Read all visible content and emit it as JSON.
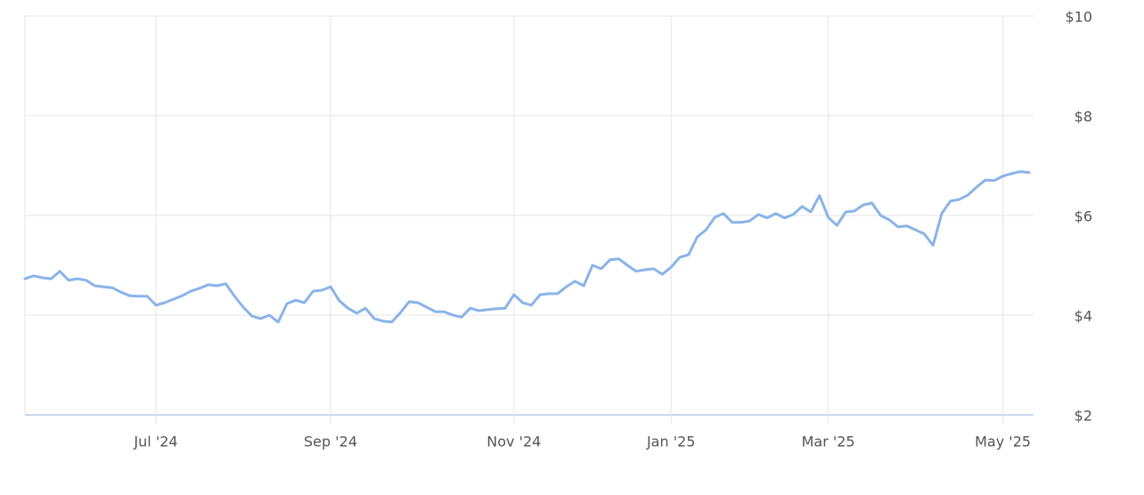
{
  "chart_data": {
    "type": "line",
    "categories": [
      null,
      null,
      null,
      null,
      null,
      null,
      null,
      null,
      null,
      null,
      null,
      null,
      null,
      null,
      null,
      "Jul '24",
      null,
      null,
      null,
      null,
      null,
      null,
      null,
      null,
      null,
      null,
      null,
      null,
      null,
      null,
      null,
      null,
      null,
      null,
      null,
      "Sep '24",
      null,
      null,
      null,
      null,
      null,
      null,
      null,
      null,
      null,
      null,
      null,
      null,
      null,
      null,
      null,
      null,
      null,
      null,
      null,
      null,
      "Nov '24",
      null,
      null,
      null,
      null,
      null,
      null,
      null,
      null,
      null,
      null,
      null,
      null,
      null,
      null,
      null,
      null,
      null,
      "Jan '25",
      null,
      null,
      null,
      null,
      null,
      null,
      null,
      null,
      null,
      null,
      null,
      null,
      null,
      null,
      null,
      null,
      null,
      "Mar '25",
      null,
      null,
      null,
      null,
      null,
      null,
      null,
      null,
      null,
      null,
      null,
      null,
      null,
      null,
      null,
      null,
      null,
      null,
      null,
      "May '25",
      null,
      null,
      null
    ],
    "values": [
      4.73,
      4.79,
      4.75,
      4.73,
      4.88,
      4.7,
      4.73,
      4.7,
      4.59,
      4.57,
      4.55,
      4.46,
      4.39,
      4.38,
      4.38,
      4.2,
      4.25,
      4.32,
      4.39,
      4.48,
      4.54,
      4.61,
      4.59,
      4.63,
      4.38,
      4.16,
      3.98,
      3.93,
      4.0,
      3.86,
      4.23,
      4.3,
      4.25,
      4.48,
      4.5,
      4.57,
      4.29,
      4.14,
      4.04,
      4.14,
      3.93,
      3.88,
      3.86,
      4.05,
      4.27,
      4.25,
      4.16,
      4.07,
      4.07,
      4.0,
      3.96,
      4.14,
      4.09,
      4.11,
      4.13,
      4.14,
      4.41,
      4.25,
      4.2,
      4.41,
      4.43,
      4.43,
      4.57,
      4.68,
      4.59,
      5.0,
      4.93,
      5.11,
      5.13,
      5.0,
      4.88,
      4.91,
      4.93,
      4.82,
      4.96,
      5.16,
      5.21,
      5.57,
      5.71,
      5.96,
      6.04,
      5.86,
      5.86,
      5.89,
      6.02,
      5.95,
      6.04,
      5.95,
      6.02,
      6.18,
      6.07,
      6.4,
      5.96,
      5.8,
      6.07,
      6.09,
      6.21,
      6.25,
      6.0,
      5.91,
      5.77,
      5.79,
      5.71,
      5.63,
      5.4,
      6.04,
      6.29,
      6.32,
      6.41,
      6.57,
      6.71,
      6.7,
      6.79,
      6.84,
      6.88,
      6.86
    ],
    "color": "#8ab4e8",
    "ylim": [
      2,
      10
    ],
    "yticks": [
      {
        "value": 2,
        "label": "$2"
      },
      {
        "value": 4,
        "label": "$4"
      },
      {
        "value": 6,
        "label": "$6"
      },
      {
        "value": 8,
        "label": "$8"
      },
      {
        "value": 10,
        "label": "$10"
      }
    ],
    "grid": true
  }
}
